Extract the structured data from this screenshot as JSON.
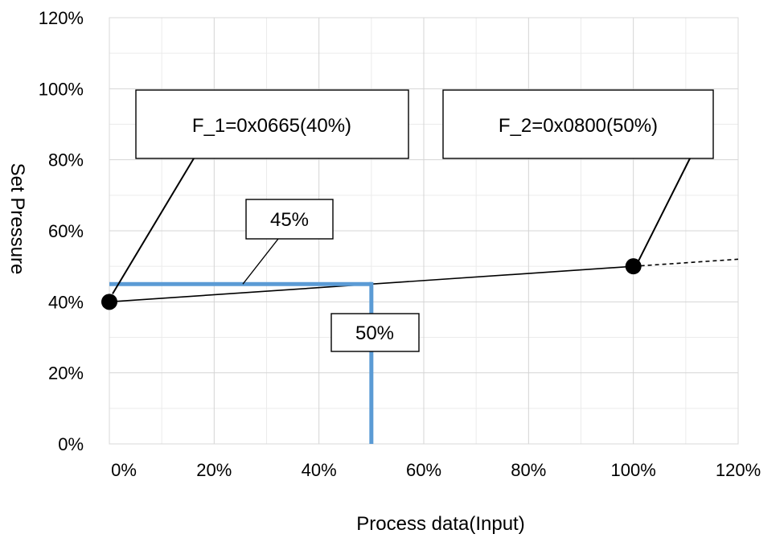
{
  "chart_data": {
    "type": "line",
    "xlabel": "Process data(Input)",
    "ylabel": "Set Pressure",
    "xlim": [
      0,
      120
    ],
    "ylim": [
      0,
      120
    ],
    "xticks": [
      "0%",
      "20%",
      "40%",
      "60%",
      "80%",
      "100%",
      "120%"
    ],
    "yticks": [
      "0%",
      "20%",
      "40%",
      "60%",
      "80%",
      "100%",
      "120%"
    ],
    "grid": true,
    "series": [
      {
        "x": [
          0,
          100
        ],
        "y": [
          40,
          50
        ],
        "color": "#000000",
        "style": "solid"
      },
      {
        "x": [
          100,
          120
        ],
        "y": [
          50,
          52
        ],
        "color": "#000000",
        "style": "dashed"
      }
    ],
    "markers": [
      {
        "x": 0,
        "y": 40
      },
      {
        "x": 100,
        "y": 50
      }
    ],
    "guide": {
      "x": 50,
      "y": 45,
      "color": "#5b9bd5"
    },
    "annotations": {
      "f1": "F_1=0x0665(40%)",
      "f2": "F_2=0x0800(50%)",
      "y_value": "45%",
      "x_value": "50%"
    }
  }
}
